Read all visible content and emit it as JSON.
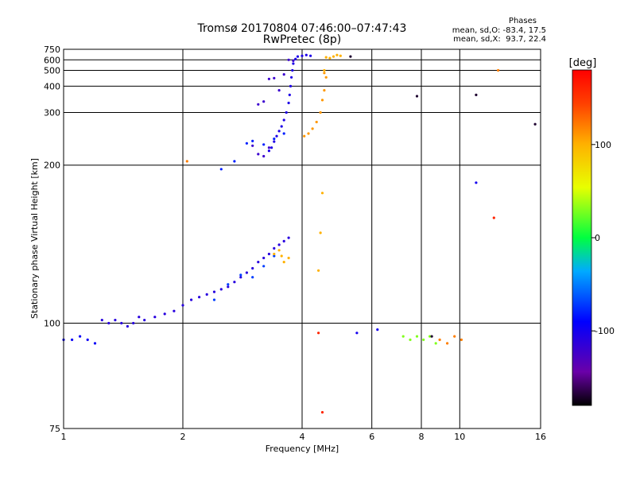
{
  "header": {
    "title": "Tromsø 20170804 07:46:00–07:47:43",
    "subtitle": "RwPretec (8p)",
    "stats_title": "Phases",
    "stats_o": "mean, sd,O: -83.4, 17.5",
    "stats_x": "mean, sd,X:  93.7, 22.4"
  },
  "chart_data": {
    "type": "scatter",
    "title": "Tromsø 20170804 07:46:00–07:47:43",
    "subtitle": "RwPretec (8p)",
    "xlabel": "Frequency [MHz]",
    "ylabel": "Stationary phase Virtual Height [km]",
    "xscale": "log",
    "yscale": "reciprocal",
    "xlim": [
      1,
      16
    ],
    "ylim": [
      75,
      750
    ],
    "x_ticks": [
      1,
      2,
      4,
      6,
      8,
      10,
      16
    ],
    "y_ticks": [
      75,
      100,
      200,
      300,
      400,
      500,
      600,
      750
    ],
    "grid": true,
    "colorbar": {
      "label": "[deg]",
      "range": [
        -180,
        180
      ],
      "ticks": [
        100,
        0,
        -100
      ]
    },
    "series": [
      {
        "phase": -95,
        "points": [
          [
            1.0,
            95
          ],
          [
            1.05,
            95
          ],
          [
            1.1,
            96
          ],
          [
            1.15,
            95
          ],
          [
            1.2,
            94
          ]
        ]
      },
      {
        "phase": -110,
        "points": [
          [
            1.25,
            101
          ],
          [
            1.3,
            100
          ],
          [
            1.35,
            101
          ],
          [
            1.4,
            100
          ],
          [
            1.45,
            99
          ],
          [
            1.5,
            100
          ],
          [
            1.55,
            102
          ],
          [
            1.6,
            101
          ],
          [
            1.7,
            102
          ],
          [
            1.8,
            103
          ],
          [
            1.9,
            104
          ],
          [
            2.0,
            106
          ],
          [
            2.1,
            108
          ],
          [
            2.2,
            109
          ],
          [
            2.3,
            110
          ],
          [
            2.4,
            111
          ],
          [
            2.5,
            112
          ],
          [
            2.6,
            113
          ],
          [
            2.7,
            115
          ],
          [
            2.8,
            117
          ],
          [
            2.9,
            119
          ],
          [
            3.0,
            121
          ],
          [
            3.1,
            124
          ],
          [
            3.2,
            126
          ],
          [
            3.3,
            128
          ],
          [
            3.4,
            131
          ],
          [
            3.5,
            133
          ],
          [
            3.6,
            135
          ],
          [
            3.7,
            137
          ]
        ]
      },
      {
        "phase": -70,
        "points": [
          [
            2.4,
            108
          ],
          [
            2.6,
            114
          ],
          [
            2.8,
            118
          ],
          [
            3.0,
            117
          ],
          [
            3.2,
            122
          ],
          [
            3.4,
            127
          ]
        ]
      },
      {
        "phase": 100,
        "points": [
          [
            3.4,
            128
          ],
          [
            3.5,
            130
          ],
          [
            3.55,
            127
          ],
          [
            3.6,
            124
          ],
          [
            3.7,
            126
          ]
        ]
      },
      {
        "phase": -105,
        "points": [
          [
            3.3,
            220
          ],
          [
            3.35,
            225
          ],
          [
            3.4,
            235
          ],
          [
            3.45,
            245
          ],
          [
            3.5,
            255
          ],
          [
            3.55,
            265
          ],
          [
            3.6,
            280
          ],
          [
            3.65,
            300
          ],
          [
            3.7,
            330
          ],
          [
            3.72,
            360
          ],
          [
            3.74,
            400
          ],
          [
            3.76,
            450
          ],
          [
            3.78,
            500
          ],
          [
            3.8,
            560
          ],
          [
            3.85,
            610
          ],
          [
            3.9,
            640
          ],
          [
            4.0,
            650
          ],
          [
            4.1,
            660
          ],
          [
            4.2,
            650
          ]
        ]
      },
      {
        "phase": -120,
        "points": [
          [
            3.0,
            228
          ],
          [
            3.1,
            215
          ],
          [
            3.2,
            212
          ],
          [
            3.3,
            225
          ],
          [
            3.1,
            325
          ],
          [
            3.2,
            335
          ],
          [
            3.3,
            440
          ],
          [
            3.4,
            445
          ],
          [
            3.5,
            380
          ],
          [
            3.6,
            470
          ],
          [
            3.7,
            600
          ],
          [
            3.8,
            590
          ]
        ]
      },
      {
        "phase": -80,
        "points": [
          [
            2.9,
            232
          ],
          [
            3.0,
            236
          ],
          [
            3.2,
            230
          ],
          [
            3.4,
            240
          ],
          [
            3.6,
            250
          ],
          [
            2.5,
            195
          ],
          [
            2.7,
            205
          ]
        ]
      },
      {
        "phase": 110,
        "points": [
          [
            4.05,
            245
          ],
          [
            4.15,
            250
          ],
          [
            4.25,
            260
          ],
          [
            4.35,
            275
          ],
          [
            4.45,
            300
          ],
          [
            4.5,
            340
          ],
          [
            4.55,
            380
          ],
          [
            4.6,
            450
          ],
          [
            4.55,
            480
          ]
        ]
      },
      {
        "phase": 100,
        "points": [
          [
            4.7,
            620
          ],
          [
            4.8,
            640
          ],
          [
            4.9,
            660
          ],
          [
            5.0,
            650
          ],
          [
            4.6,
            630
          ],
          [
            4.4,
            120
          ],
          [
            4.45,
            140
          ],
          [
            4.5,
            170
          ],
          [
            4.55,
            500
          ]
        ]
      },
      {
        "phase": 30,
        "points": [
          [
            7.2,
            96
          ],
          [
            7.5,
            95
          ],
          [
            7.8,
            96
          ],
          [
            8.1,
            95
          ],
          [
            8.4,
            96
          ],
          [
            8.7,
            94
          ]
        ]
      },
      {
        "phase": 120,
        "points": [
          [
            8.9,
            95
          ],
          [
            9.3,
            94
          ],
          [
            9.7,
            96
          ],
          [
            10.1,
            95
          ],
          [
            2.05,
            205
          ],
          [
            12.5,
            500
          ]
        ]
      },
      {
        "phase": -170,
        "points": [
          [
            5.3,
            640
          ],
          [
            7.8,
            355
          ],
          [
            11.0,
            360
          ],
          [
            15.5,
            270
          ],
          [
            8.5,
            96
          ]
        ]
      },
      {
        "phase": -100,
        "points": [
          [
            11.0,
            180
          ],
          [
            5.5,
            97
          ],
          [
            6.2,
            98
          ]
        ]
      },
      {
        "phase": 160,
        "points": [
          [
            4.5,
            78
          ],
          [
            4.4,
            97
          ],
          [
            12.2,
            150
          ]
        ]
      }
    ]
  }
}
